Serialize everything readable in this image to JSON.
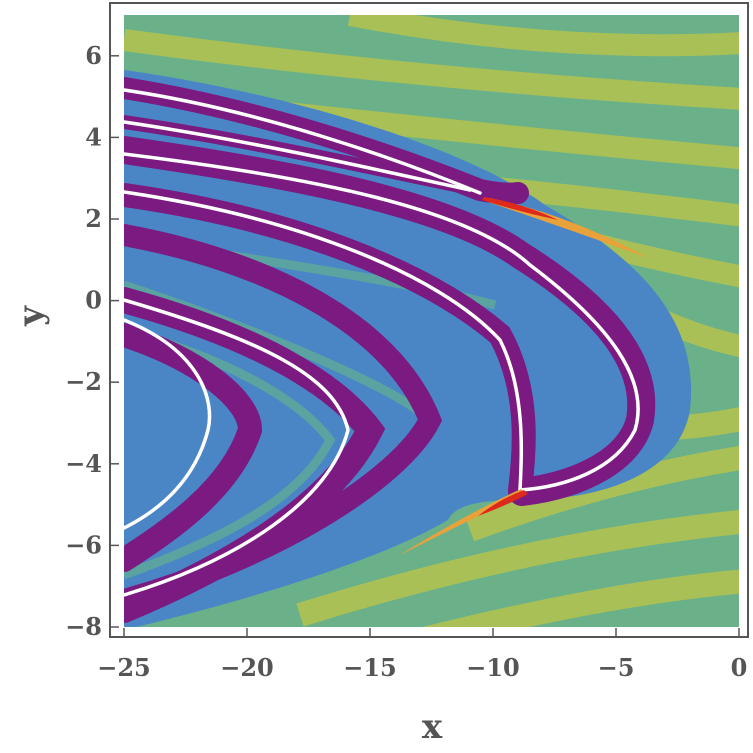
{
  "chart_data": {
    "type": "contour",
    "title": "",
    "xlabel": "x",
    "ylabel": "y",
    "xlim": [
      -25,
      0
    ],
    "ylim": [
      -8,
      7
    ],
    "grid": false,
    "legend": "none",
    "x_ticks": [
      -25,
      -20,
      -15,
      -10,
      -5,
      0
    ],
    "x_tick_labels": [
      "−25",
      "−20",
      "−15",
      "−10",
      "−5",
      "0"
    ],
    "y_ticks": [
      -8,
      -6,
      -4,
      -2,
      0,
      2,
      4,
      6
    ],
    "y_tick_labels": [
      "−8",
      "−6",
      "−4",
      "−2",
      "0",
      "2",
      "4",
      "6"
    ],
    "band_colors": [
      "#a9c056",
      "#6ab18a",
      "#5ba3a0",
      "#4a86c6",
      "#7b1a80",
      "#e9a13a",
      "#de2a1a",
      "#ffffff"
    ],
    "vertex_points": [
      {
        "x": -10.5,
        "y": 2.6
      },
      {
        "x": -8.7,
        "y": -4.6
      }
    ]
  }
}
